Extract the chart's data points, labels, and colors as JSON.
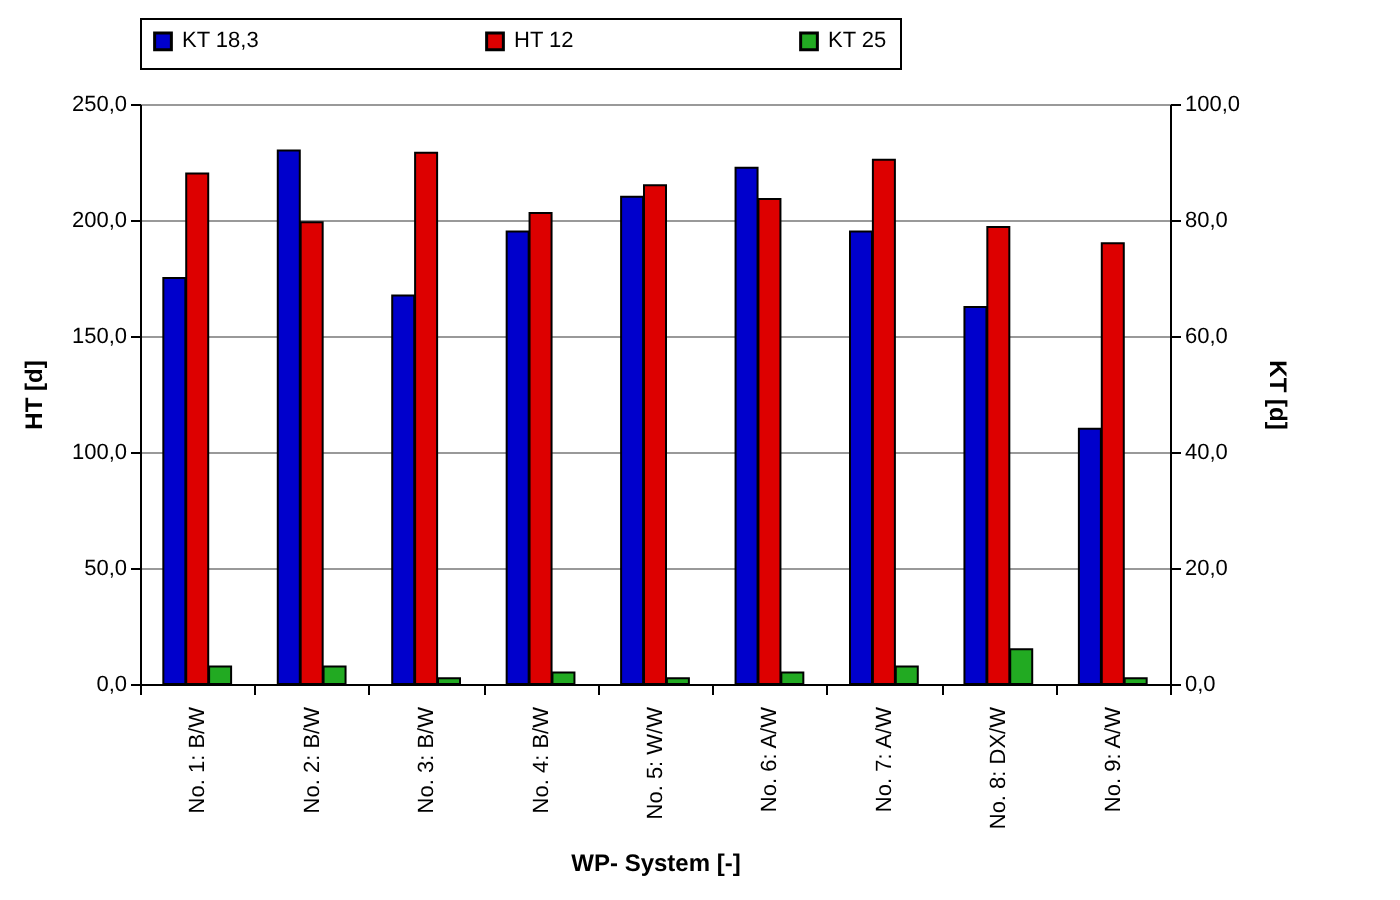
{
  "chart_data": {
    "type": "bar",
    "xlabel": "WP- System [-]",
    "ylabel": "HT [d]",
    "y2label": "KT [d]",
    "categories": [
      "No. 1: B/W",
      "No. 2: B/W",
      "No. 3: B/W",
      "No. 4: B/W",
      "No. 5: W/W",
      "No. 6: A/W",
      "No. 7: A/W",
      "No. 8: DX/W",
      "No. 9: A/W"
    ],
    "series": [
      {
        "name": "KT 18,3",
        "color": "#0000cc",
        "axis": "y2",
        "values": [
          70,
          92,
          67,
          78,
          84,
          89,
          78,
          65,
          44
        ]
      },
      {
        "name": "HT 12",
        "color": "#dd0000",
        "values": [
          220,
          199,
          229,
          203,
          215,
          209,
          226,
          197,
          190
        ]
      },
      {
        "name": "KT 25",
        "color": "#22aa22",
        "axis": "y2",
        "values": [
          3,
          3,
          1,
          2,
          1,
          2,
          3,
          6,
          1
        ]
      }
    ],
    "ylim": [
      0,
      250
    ],
    "yticks": [
      {
        "value": 0,
        "label": "0,0"
      },
      {
        "value": 50,
        "label": "50,0"
      },
      {
        "value": 100,
        "label": "100,0"
      },
      {
        "value": 150,
        "label": "150,0"
      },
      {
        "value": 200,
        "label": "200,0"
      },
      {
        "value": 250,
        "label": "250,0"
      }
    ],
    "y2lim": [
      0,
      100
    ],
    "y2ticks": [
      {
        "value": 0,
        "label": "0,0"
      },
      {
        "value": 20,
        "label": "20,0"
      },
      {
        "value": 40,
        "label": "40,0"
      },
      {
        "value": 60,
        "label": "60,0"
      },
      {
        "value": 80,
        "label": "80,0"
      },
      {
        "value": 100,
        "label": "100,0"
      }
    ],
    "grid": "y",
    "legend": "top"
  }
}
